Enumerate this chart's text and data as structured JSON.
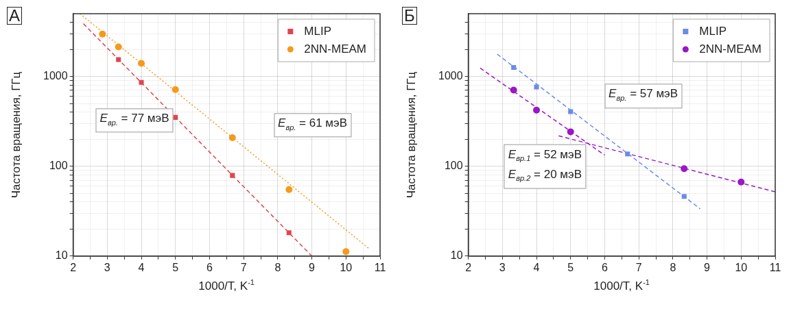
{
  "chart_data": [
    {
      "type": "scatter",
      "title": "А",
      "xlabel": "1000/T, K$^{-1}$",
      "ylabel": "Частота вращения, ГГц",
      "log": "y",
      "grid": true,
      "legend": "top right",
      "xlim": [
        2,
        11
      ],
      "xticks": [
        2,
        {
          "value": 2.5,
          "label": null
        },
        3,
        {
          "value": 3.5,
          "label": null
        },
        4,
        {
          "value": 4.5,
          "label": null
        },
        5,
        {
          "value": 5.5,
          "label": null
        },
        6,
        {
          "value": 6.5,
          "label": null
        },
        7,
        {
          "value": 7.5,
          "label": null
        },
        8,
        {
          "value": 8.5,
          "label": null
        },
        9,
        {
          "value": 9.5,
          "label": null
        },
        10,
        {
          "value": 10.5,
          "label": null
        },
        11
      ],
      "ylim": [
        10,
        5000
      ],
      "yticks": [
        10,
        {
          "value": 20,
          "label": null
        },
        {
          "value": 30,
          "label": null
        },
        {
          "value": 40,
          "label": null
        },
        {
          "value": 50,
          "label": null
        },
        {
          "value": 60,
          "label": null
        },
        {
          "value": 70,
          "label": null
        },
        {
          "value": 80,
          "label": null
        },
        {
          "value": 90,
          "label": null
        },
        100,
        {
          "value": 200,
          "label": null
        },
        {
          "value": 300,
          "label": null
        },
        {
          "value": 400,
          "label": null
        },
        {
          "value": 500,
          "label": null
        },
        {
          "value": 600,
          "label": null
        },
        {
          "value": 700,
          "label": null
        },
        {
          "value": 800,
          "label": null
        },
        {
          "value": 900,
          "label": null
        },
        1000,
        {
          "value": 2000,
          "label": null
        },
        {
          "value": 3000,
          "label": null
        },
        {
          "value": 4000,
          "label": null
        }
      ],
      "series": [
        {
          "name": "MLIP",
          "marker": "square",
          "color": "#e0454f",
          "x": [
            3.33,
            4,
            5,
            6.67,
            8.33
          ],
          "values": [
            1540,
            860,
            350,
            79,
            18.2
          ]
        },
        {
          "name": "2NN-MEAM",
          "marker": "circle",
          "color": "#f59a1b",
          "x": [
            2.86,
            3.33,
            4,
            5,
            6.67,
            8.33,
            10
          ],
          "values": [
            2970,
            2130,
            1400,
            715,
            208,
            55,
            11.2
          ]
        },
        {
          "type": "line",
          "marker": "none",
          "line_style": "dashed",
          "color": "#e0454f",
          "x": [
            2.3,
            9
          ],
          "values": [
            3870,
            10
          ]
        },
        {
          "type": "line",
          "marker": "none",
          "line_style": "dotted",
          "color": "#f59a1b",
          "x": [
            2.2,
            10.7
          ],
          "values": [
            5000,
            11.9
          ]
        }
      ],
      "annotations": [
        "E$_{вр.}$ = 77 мэВ",
        "E$_{вр.}$ = 61 мэВ"
      ]
    },
    {
      "type": "scatter",
      "title": "Б",
      "xlabel": "1000/T, K$^{-1}$",
      "ylabel": "Частота вращения, ГГц",
      "log": "y",
      "grid": true,
      "legend": "top right",
      "xlim": [
        2,
        11
      ],
      "xticks": [
        2,
        {
          "value": 2.5,
          "label": null
        },
        3,
        {
          "value": 3.5,
          "label": null
        },
        4,
        {
          "value": 4.5,
          "label": null
        },
        5,
        {
          "value": 5.5,
          "label": null
        },
        6,
        {
          "value": 6.5,
          "label": null
        },
        7,
        {
          "value": 7.5,
          "label": null
        },
        8,
        {
          "value": 8.5,
          "label": null
        },
        9,
        {
          "value": 9.5,
          "label": null
        },
        10,
        {
          "value": 10.5,
          "label": null
        },
        11
      ],
      "ylim": [
        10,
        5000
      ],
      "yticks": [
        10,
        {
          "value": 20,
          "label": null
        },
        {
          "value": 30,
          "label": null
        },
        {
          "value": 40,
          "label": null
        },
        {
          "value": 50,
          "label": null
        },
        {
          "value": 60,
          "label": null
        },
        {
          "value": 70,
          "label": null
        },
        {
          "value": 80,
          "label": null
        },
        {
          "value": 90,
          "label": null
        },
        100,
        {
          "value": 200,
          "label": null
        },
        {
          "value": 300,
          "label": null
        },
        {
          "value": 400,
          "label": null
        },
        {
          "value": 500,
          "label": null
        },
        {
          "value": 600,
          "label": null
        },
        {
          "value": 700,
          "label": null
        },
        {
          "value": 800,
          "label": null
        },
        {
          "value": 900,
          "label": null
        },
        1000,
        {
          "value": 2000,
          "label": null
        },
        {
          "value": 3000,
          "label": null
        },
        {
          "value": 4000,
          "label": null
        }
      ],
      "series": [
        {
          "name": "MLIP",
          "marker": "square",
          "color": "#6b8be8",
          "x": [
            3.33,
            4,
            5,
            6.67,
            8.33
          ],
          "values": [
            1260,
            763,
            406,
            137,
            46.2
          ]
        },
        {
          "name": "2NN-MEAM",
          "marker": "circle",
          "color": "#9a16c6",
          "x": [
            3.33,
            4,
            5,
            8.33,
            10
          ],
          "values": [
            705,
            422,
            242,
            94,
            66.7
          ]
        },
        {
          "type": "line",
          "marker": "none",
          "line_style": "dashed",
          "color": "#6b8be8",
          "x": [
            2.85,
            8.8
          ],
          "values": [
            1770,
            33.6
          ]
        },
        {
          "type": "line",
          "marker": "none",
          "line_style": "dashed",
          "color": "#9a16c6",
          "x": [
            2.35,
            6.0
          ],
          "values": [
            1240,
            133
          ]
        },
        {
          "type": "line",
          "marker": "none",
          "line_style": "dashed",
          "color": "#9a16c6",
          "x": [
            4.65,
            11
          ],
          "values": [
            218,
            52
          ]
        }
      ],
      "annotations": [
        "E$_{вр.}$ = 57 мэВ",
        "E$_{вр.1}$ = 52 мэВ\nE$_{вр.2}$ = 20 мэВ"
      ]
    }
  ]
}
